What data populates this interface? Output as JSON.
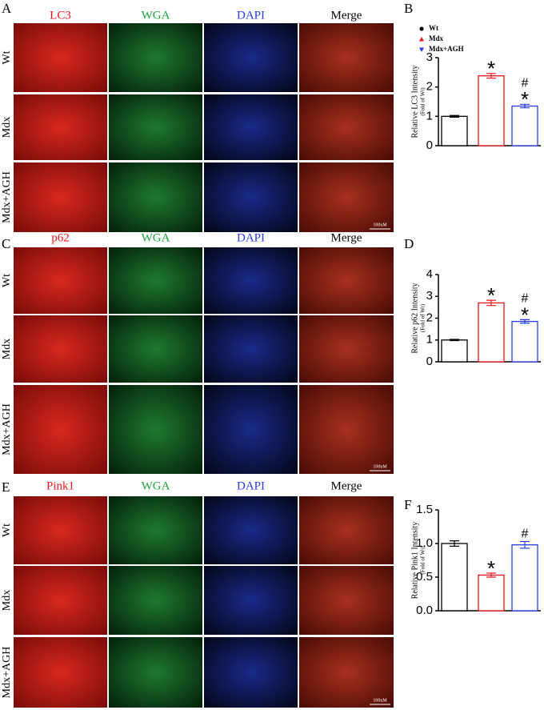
{
  "figure": {
    "panels": [
      {
        "label": "A",
        "channels": [
          "LC3",
          "WGA",
          "DAPI",
          "Merge"
        ],
        "rows": [
          "Wt",
          "Mdx",
          "Mdx+AGH"
        ],
        "scale_bar": "100uM"
      },
      {
        "label": "C",
        "channels": [
          "p62",
          "WGA",
          "DAPI",
          "Merge"
        ],
        "rows": [
          "Wt",
          "Mdx",
          "Mdx+AGH"
        ],
        "scale_bar": "100uM"
      },
      {
        "label": "E",
        "channels": [
          "Pink1",
          "WGA",
          "DAPI",
          "Merge"
        ],
        "rows": [
          "Wt",
          "Mdx",
          "Mdx+AGH"
        ],
        "scale_bar": "100uM"
      }
    ]
  },
  "chart_data": [
    {
      "type": "bar",
      "panel": "B",
      "ylabel": "Relative LC3 Intensity",
      "ylabel_sub": "(Fold of Wt)",
      "categories": [
        "Wt",
        "Mdx",
        "Mdx+AGH"
      ],
      "legend": true,
      "colors": [
        "#000000",
        "#e8141c",
        "#2b3be0"
      ],
      "values": [
        1.0,
        2.38,
        1.35
      ],
      "errors": [
        0.03,
        0.08,
        0.06
      ],
      "annotations": [
        [],
        [
          "*"
        ],
        [
          "#",
          "*"
        ]
      ],
      "ylim": [
        0,
        3
      ],
      "yticks": [
        0,
        1,
        2,
        3
      ]
    },
    {
      "type": "bar",
      "panel": "D",
      "ylabel": "Relative p62 Intensity",
      "ylabel_sub": "(Fold of Wt)",
      "colors": [
        "#000000",
        "#e8141c",
        "#2b3be0"
      ],
      "values": [
        1.0,
        2.7,
        1.85
      ],
      "errors": [
        0.03,
        0.12,
        0.08
      ],
      "annotations": [
        [],
        [
          "*"
        ],
        [
          "#",
          "*"
        ]
      ],
      "ylim": [
        0,
        4
      ],
      "yticks": [
        0,
        1,
        2,
        3,
        4
      ]
    },
    {
      "type": "bar",
      "panel": "F",
      "ylabel": "Relative Pink1 Intensity",
      "ylabel_sub": "(Fold of Wt)",
      "colors": [
        "#000000",
        "#e8141c",
        "#2b3be0"
      ],
      "values": [
        1.0,
        0.53,
        0.98
      ],
      "errors": [
        0.04,
        0.03,
        0.05
      ],
      "annotations": [
        [],
        [
          "*"
        ],
        [
          "#"
        ]
      ],
      "ylim": [
        0,
        1.5
      ],
      "yticks": [
        {
          "value": 0,
          "label": "0.0"
        },
        {
          "value": 0.5,
          "label": "0.5"
        },
        {
          "value": 1,
          "label": "1.0"
        },
        {
          "value": 1.5,
          "label": "1.5"
        }
      ]
    }
  ]
}
